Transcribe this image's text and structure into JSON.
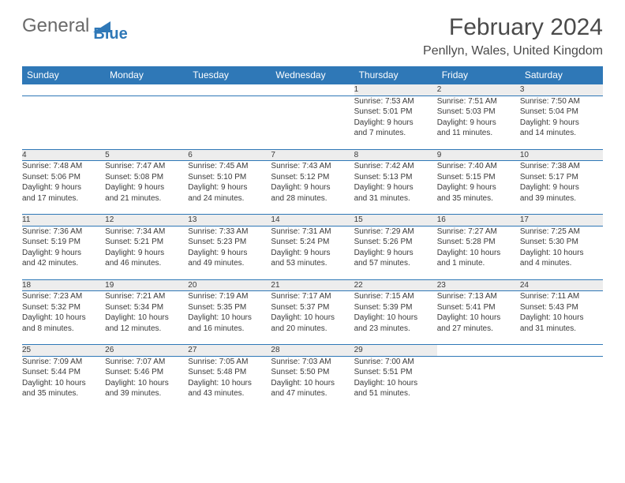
{
  "colors": {
    "header_bg": "#2f78b7",
    "header_text": "#ffffff",
    "daynum_bg": "#ededed",
    "row_border": "#2f78b7",
    "body_text": "#3a3a3a",
    "page_bg": "#ffffff"
  },
  "logo": {
    "part1": "General",
    "part2": "Blue"
  },
  "title": {
    "month": "February 2024",
    "location": "Penllyn, Wales, United Kingdom"
  },
  "day_headers": [
    "Sunday",
    "Monday",
    "Tuesday",
    "Wednesday",
    "Thursday",
    "Friday",
    "Saturday"
  ],
  "weeks": [
    {
      "nums": [
        "",
        "",
        "",
        "",
        "1",
        "2",
        "3"
      ],
      "sunrise": [
        "",
        "",
        "",
        "",
        "Sunrise: 7:53 AM",
        "Sunrise: 7:51 AM",
        "Sunrise: 7:50 AM"
      ],
      "sunset": [
        "",
        "",
        "",
        "",
        "Sunset: 5:01 PM",
        "Sunset: 5:03 PM",
        "Sunset: 5:04 PM"
      ],
      "day1": [
        "",
        "",
        "",
        "",
        "Daylight: 9 hours",
        "Daylight: 9 hours",
        "Daylight: 9 hours"
      ],
      "day2": [
        "",
        "",
        "",
        "",
        "and 7 minutes.",
        "and 11 minutes.",
        "and 14 minutes."
      ]
    },
    {
      "nums": [
        "4",
        "5",
        "6",
        "7",
        "8",
        "9",
        "10"
      ],
      "sunrise": [
        "Sunrise: 7:48 AM",
        "Sunrise: 7:47 AM",
        "Sunrise: 7:45 AM",
        "Sunrise: 7:43 AM",
        "Sunrise: 7:42 AM",
        "Sunrise: 7:40 AM",
        "Sunrise: 7:38 AM"
      ],
      "sunset": [
        "Sunset: 5:06 PM",
        "Sunset: 5:08 PM",
        "Sunset: 5:10 PM",
        "Sunset: 5:12 PM",
        "Sunset: 5:13 PM",
        "Sunset: 5:15 PM",
        "Sunset: 5:17 PM"
      ],
      "day1": [
        "Daylight: 9 hours",
        "Daylight: 9 hours",
        "Daylight: 9 hours",
        "Daylight: 9 hours",
        "Daylight: 9 hours",
        "Daylight: 9 hours",
        "Daylight: 9 hours"
      ],
      "day2": [
        "and 17 minutes.",
        "and 21 minutes.",
        "and 24 minutes.",
        "and 28 minutes.",
        "and 31 minutes.",
        "and 35 minutes.",
        "and 39 minutes."
      ]
    },
    {
      "nums": [
        "11",
        "12",
        "13",
        "14",
        "15",
        "16",
        "17"
      ],
      "sunrise": [
        "Sunrise: 7:36 AM",
        "Sunrise: 7:34 AM",
        "Sunrise: 7:33 AM",
        "Sunrise: 7:31 AM",
        "Sunrise: 7:29 AM",
        "Sunrise: 7:27 AM",
        "Sunrise: 7:25 AM"
      ],
      "sunset": [
        "Sunset: 5:19 PM",
        "Sunset: 5:21 PM",
        "Sunset: 5:23 PM",
        "Sunset: 5:24 PM",
        "Sunset: 5:26 PM",
        "Sunset: 5:28 PM",
        "Sunset: 5:30 PM"
      ],
      "day1": [
        "Daylight: 9 hours",
        "Daylight: 9 hours",
        "Daylight: 9 hours",
        "Daylight: 9 hours",
        "Daylight: 9 hours",
        "Daylight: 10 hours",
        "Daylight: 10 hours"
      ],
      "day2": [
        "and 42 minutes.",
        "and 46 minutes.",
        "and 49 minutes.",
        "and 53 minutes.",
        "and 57 minutes.",
        "and 1 minute.",
        "and 4 minutes."
      ]
    },
    {
      "nums": [
        "18",
        "19",
        "20",
        "21",
        "22",
        "23",
        "24"
      ],
      "sunrise": [
        "Sunrise: 7:23 AM",
        "Sunrise: 7:21 AM",
        "Sunrise: 7:19 AM",
        "Sunrise: 7:17 AM",
        "Sunrise: 7:15 AM",
        "Sunrise: 7:13 AM",
        "Sunrise: 7:11 AM"
      ],
      "sunset": [
        "Sunset: 5:32 PM",
        "Sunset: 5:34 PM",
        "Sunset: 5:35 PM",
        "Sunset: 5:37 PM",
        "Sunset: 5:39 PM",
        "Sunset: 5:41 PM",
        "Sunset: 5:43 PM"
      ],
      "day1": [
        "Daylight: 10 hours",
        "Daylight: 10 hours",
        "Daylight: 10 hours",
        "Daylight: 10 hours",
        "Daylight: 10 hours",
        "Daylight: 10 hours",
        "Daylight: 10 hours"
      ],
      "day2": [
        "and 8 minutes.",
        "and 12 minutes.",
        "and 16 minutes.",
        "and 20 minutes.",
        "and 23 minutes.",
        "and 27 minutes.",
        "and 31 minutes."
      ]
    },
    {
      "nums": [
        "25",
        "26",
        "27",
        "28",
        "29",
        "",
        ""
      ],
      "sunrise": [
        "Sunrise: 7:09 AM",
        "Sunrise: 7:07 AM",
        "Sunrise: 7:05 AM",
        "Sunrise: 7:03 AM",
        "Sunrise: 7:00 AM",
        "",
        ""
      ],
      "sunset": [
        "Sunset: 5:44 PM",
        "Sunset: 5:46 PM",
        "Sunset: 5:48 PM",
        "Sunset: 5:50 PM",
        "Sunset: 5:51 PM",
        "",
        ""
      ],
      "day1": [
        "Daylight: 10 hours",
        "Daylight: 10 hours",
        "Daylight: 10 hours",
        "Daylight: 10 hours",
        "Daylight: 10 hours",
        "",
        ""
      ],
      "day2": [
        "and 35 minutes.",
        "and 39 minutes.",
        "and 43 minutes.",
        "and 47 minutes.",
        "and 51 minutes.",
        "",
        ""
      ]
    }
  ]
}
